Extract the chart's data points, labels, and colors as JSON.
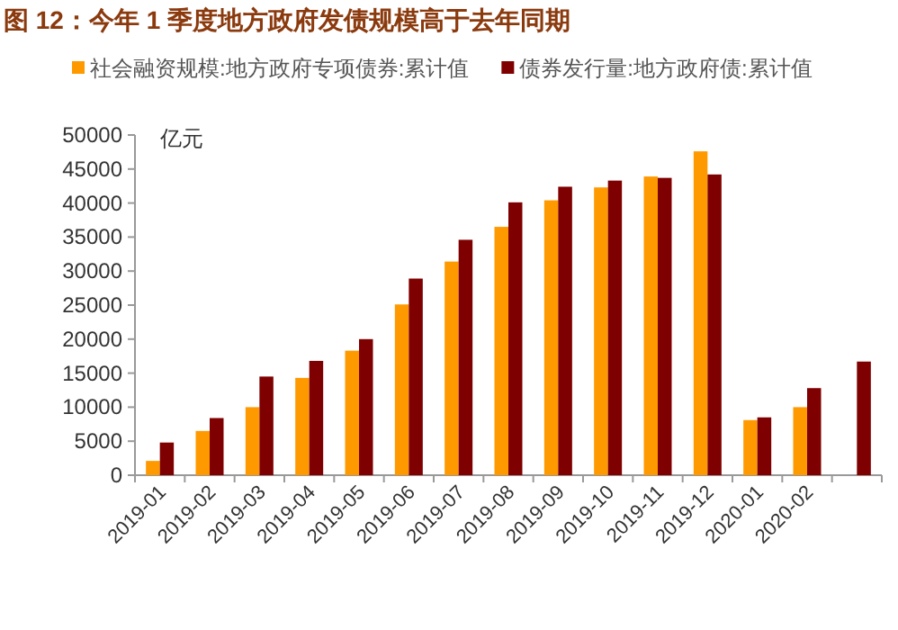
{
  "chart_data": {
    "type": "bar",
    "title": "图 12：今年 1 季度地方政府发债规模高于去年同期",
    "ylabel": "亿元",
    "categories": [
      "2019-01",
      "2019-02",
      "2019-03",
      "2019-04",
      "2019-05",
      "2019-06",
      "2019-07",
      "2019-08",
      "2019-09",
      "2019-10",
      "2019-11",
      "2019-12",
      "2020-01",
      "2020-02",
      null
    ],
    "series": [
      {
        "name": "社会融资规模:地方政府专项债券:累计值",
        "color": "#ff9900",
        "values": [
          2100,
          6500,
          10000,
          14300,
          18300,
          25100,
          31400,
          36500,
          40400,
          42300,
          43900,
          47600,
          8100,
          10000,
          null
        ]
      },
      {
        "name": "债券发行量:地方政府债:累计值",
        "color": "#7f0000",
        "values": [
          4800,
          8400,
          14500,
          16800,
          20000,
          28900,
          34600,
          40100,
          42400,
          43300,
          43700,
          44200,
          8500,
          12800,
          16700
        ]
      }
    ],
    "ylim": [
      0,
      50000
    ],
    "yticks": [
      0,
      5000,
      10000,
      15000,
      20000,
      25000,
      30000,
      35000,
      40000,
      45000,
      50000
    ],
    "legend": "top",
    "grid": false
  }
}
